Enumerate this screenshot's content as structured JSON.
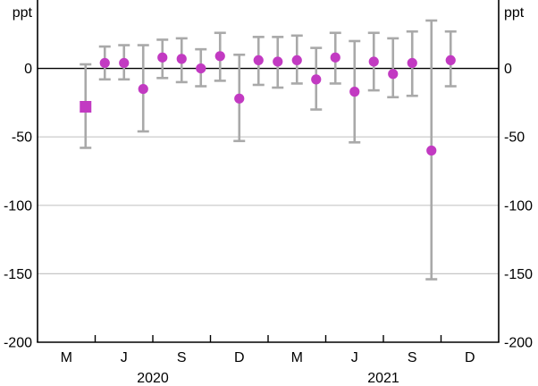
{
  "figure": {
    "unit_label_left": "ppt",
    "unit_label_right": "ppt",
    "colors": {
      "marker": "#c23ac2",
      "error_bar": "#a9a9a9",
      "gridline": "#c6c6c6",
      "axis": "#000000",
      "zero_line": "#000000",
      "background": "#ffffff"
    }
  },
  "chart_data": {
    "type": "scatter",
    "title": "",
    "ylabel": "ppt",
    "ylim": [
      -200,
      50
    ],
    "grid": "horizontal-only",
    "legend": "none",
    "months_total": 24,
    "x_start_month": "Feb 2020",
    "yticks": [
      {
        "label": "0",
        "v": 0
      },
      {
        "label": "-50",
        "v": -50
      },
      {
        "label": "-100",
        "v": -100
      },
      {
        "label": "-150",
        "v": -150
      },
      {
        "label": "-200",
        "v": -200
      }
    ],
    "gridlines": [
      -50,
      -100,
      -150
    ],
    "x_tick_boundaries": [
      3,
      6,
      9,
      12,
      15,
      18,
      21
    ],
    "month_labels": [
      {
        "text": "M",
        "m": 1
      },
      {
        "text": "J",
        "m": 4
      },
      {
        "text": "S",
        "m": 7
      },
      {
        "text": "D",
        "m": 10
      },
      {
        "text": "M",
        "m": 13
      },
      {
        "text": "J",
        "m": 16
      },
      {
        "text": "S",
        "m": 19
      },
      {
        "text": "D",
        "m": 22
      }
    ],
    "year_labels": [
      {
        "text": "2020",
        "boundary": 6
      },
      {
        "text": "2021",
        "boundary": 18
      }
    ],
    "points": [
      {
        "m": 2,
        "label": "Apr 2020",
        "value": -28,
        "ci_low": -58,
        "ci_high": 3,
        "marker": "square"
      },
      {
        "m": 3,
        "label": "May 2020",
        "value": 4,
        "ci_low": -8,
        "ci_high": 16,
        "marker": "circle"
      },
      {
        "m": 4,
        "label": "Jun 2020",
        "value": 4,
        "ci_low": -8,
        "ci_high": 17,
        "marker": "circle"
      },
      {
        "m": 5,
        "label": "Jul 2020",
        "value": -15,
        "ci_low": -46,
        "ci_high": 17,
        "marker": "circle"
      },
      {
        "m": 6,
        "label": "Aug 2020",
        "value": 8,
        "ci_low": -7,
        "ci_high": 21,
        "marker": "circle"
      },
      {
        "m": 7,
        "label": "Sep 2020",
        "value": 7,
        "ci_low": -10,
        "ci_high": 22,
        "marker": "circle"
      },
      {
        "m": 8,
        "label": "Oct 2020",
        "value": 0,
        "ci_low": -13,
        "ci_high": 14,
        "marker": "circle"
      },
      {
        "m": 9,
        "label": "Nov 2020",
        "value": 9,
        "ci_low": -9,
        "ci_high": 26,
        "marker": "circle"
      },
      {
        "m": 10,
        "label": "Dec 2020",
        "value": -22,
        "ci_low": -53,
        "ci_high": 10,
        "marker": "circle"
      },
      {
        "m": 11,
        "label": "Jan 2021",
        "value": 6,
        "ci_low": -12,
        "ci_high": 23,
        "marker": "circle"
      },
      {
        "m": 12,
        "label": "Feb 2021",
        "value": 5,
        "ci_low": -14,
        "ci_high": 23,
        "marker": "circle"
      },
      {
        "m": 13,
        "label": "Mar 2021",
        "value": 6,
        "ci_low": -11,
        "ci_high": 24,
        "marker": "circle"
      },
      {
        "m": 14,
        "label": "Apr 2021",
        "value": -8,
        "ci_low": -30,
        "ci_high": 15,
        "marker": "circle"
      },
      {
        "m": 15,
        "label": "May 2021",
        "value": 8,
        "ci_low": -11,
        "ci_high": 26,
        "marker": "circle"
      },
      {
        "m": 16,
        "label": "Jun 2021",
        "value": -17,
        "ci_low": -54,
        "ci_high": 20,
        "marker": "circle"
      },
      {
        "m": 17,
        "label": "Jul 2021",
        "value": 5,
        "ci_low": -16,
        "ci_high": 26,
        "marker": "circle"
      },
      {
        "m": 18,
        "label": "Aug 2021",
        "value": -4,
        "ci_low": -21,
        "ci_high": 22,
        "marker": "circle"
      },
      {
        "m": 19,
        "label": "Sep 2021",
        "value": 4,
        "ci_low": -20,
        "ci_high": 27,
        "marker": "circle"
      },
      {
        "m": 20,
        "label": "Oct 2021",
        "value": -60,
        "ci_low": -154,
        "ci_high": 35,
        "marker": "circle"
      },
      {
        "m": 21,
        "label": "Nov 2021",
        "value": 6,
        "ci_low": -13,
        "ci_high": 27,
        "marker": "circle"
      }
    ]
  }
}
